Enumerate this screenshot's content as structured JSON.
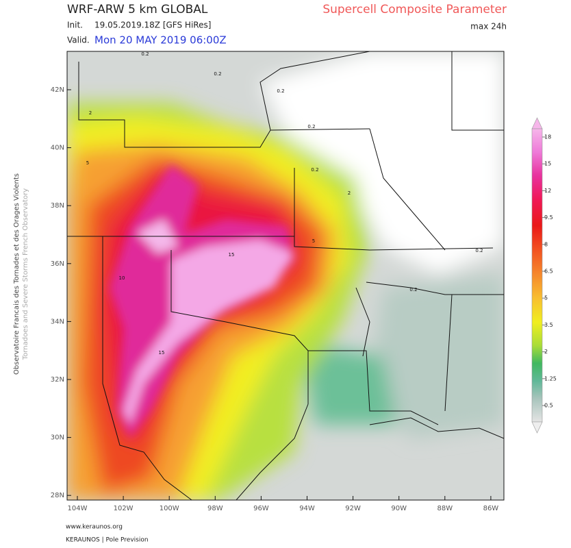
{
  "header": {
    "model": "WRF-ARW 5 km GLOBAL",
    "init_label": "Init.",
    "init": "19.05.2019.18Z [GFS HiRes]",
    "valid_label": "Valid.",
    "valid": "Mon 20 MAY 2019 06:00Z",
    "parameter": "Supercell Composite Parameter",
    "period": "max 24h"
  },
  "side_credit": [
    "Observatoire Francais des Tornades et des Orages Violents",
    "Tornadoes and Severe Storms French Observatory"
  ],
  "map": {
    "lat_labels": [
      "42N",
      "40N",
      "38N",
      "36N",
      "34N",
      "32N",
      "30N",
      "28N"
    ],
    "lon_labels": [
      "104W",
      "102W",
      "100W",
      "98W",
      "96W",
      "94W",
      "92W",
      "90W",
      "88W",
      "86W"
    ],
    "contour_labels": [
      "0.2",
      "0.2",
      "0.2",
      "0.2",
      "0.2",
      "0.2",
      "0.2",
      "2",
      "2",
      "5",
      "5",
      "10",
      "15",
      "15"
    ]
  },
  "colorbar": {
    "ticks": [
      18,
      15,
      12,
      9.5,
      8,
      6.5,
      5,
      3.5,
      2,
      1.25,
      0.5
    ]
  },
  "footer": [
    "www.keraunos.org",
    "KERAUNOS | Pole Prevision"
  ]
}
